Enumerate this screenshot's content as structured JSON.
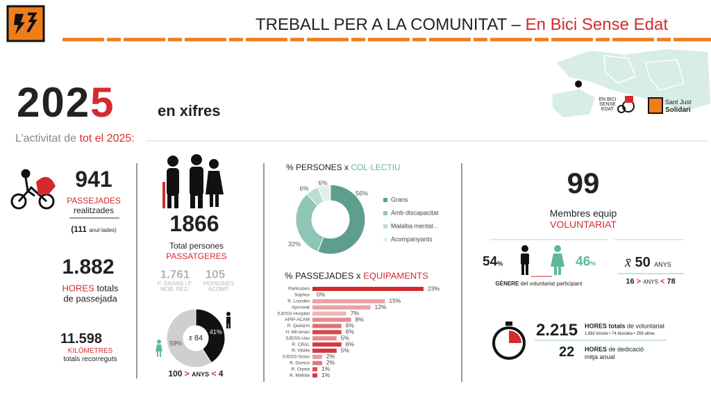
{
  "header": {
    "title": "TREBALL PER A LA COMUNITAT –",
    "title_highlight": "En Bici Sense Edat"
  },
  "hero": {
    "year_main": "202",
    "year_accent": "5",
    "tagline": "en xifres",
    "intro": "L’activitat de",
    "intro_highlight": "tot el 2025:"
  },
  "logos": {
    "ebse": "EN BICI SENSE EDAT",
    "sant_just": "Sant Just",
    "solidari": "Solidari"
  },
  "rides": {
    "total": "941",
    "label": "PASSEJADES",
    "sublabel": "realitzades",
    "cancelled": "(111",
    "cancelled_label": "anul·lades)"
  },
  "hours": {
    "total": "1.882",
    "label": "HORES",
    "label_rest": "totals",
    "sublabel": "de passejada"
  },
  "distance": {
    "total": "11.598",
    "label": "KILÒMETRES",
    "sublabel": "totals recorreguts"
  },
  "passengers": {
    "total": "1866",
    "label": "Total persones",
    "label_highlight": "PASSATGERES",
    "elderly": "1.761",
    "elderly_label": "P. GRANS I P. MOB. RED.",
    "companions": "105",
    "companions_label": "PERSONES ACOMP.",
    "age_min": "100",
    "age_gt": ">",
    "age_label": "ANYS",
    "age_lt": "<",
    "age_max": "4"
  },
  "volunteers": {
    "total": "99",
    "label": "Membres equip",
    "label_highlight": "VOLUNTARIAT",
    "men": "54",
    "men_unit": "%",
    "women": "46",
    "women_unit": "%",
    "gender_label": "GÈNERE",
    "gender_label_rest": "del voluntariat participant",
    "mean_symbol": "x̄",
    "mean_age": "50",
    "mean_unit": "ANYS",
    "age_min": "16",
    "age_gt": ">",
    "age_label": "ANYS",
    "age_lt": "<",
    "age_max": "78",
    "hours_total": "2.215",
    "hours_label": "HORES totals",
    "hours_label_rest": "de voluntariat",
    "hours_breakdown": "1.882 tricicle • 74 bicicleta • 259 altres",
    "hours_avg": "22",
    "hours_avg_label": "HORES",
    "hours_avg_label_rest": "de dedicació mitja anual"
  },
  "chart_data": [
    {
      "type": "donut",
      "values": [
        41,
        59
      ],
      "value_labels": [
        "41%",
        "59%"
      ],
      "colors": [
        "#111111",
        "#cfcfcf"
      ],
      "center_symbol": "x̄",
      "center_value": "84"
    },
    {
      "type": "donut",
      "title": "% PERSONES x",
      "title_highlight": "COL·LECTIU",
      "categories": [
        "Grans",
        "Amb discapacitat",
        "Malaltia mental...",
        "Acompanyants"
      ],
      "values": [
        56,
        32,
        6,
        6
      ],
      "value_labels": [
        "56%",
        "32%",
        "6%",
        "6%"
      ],
      "colors": [
        "#5f9e8f",
        "#8fc5b6",
        "#b9ddd2",
        "#e2f0eb"
      ]
    },
    {
      "type": "bar",
      "title": "% PASSEJADES x",
      "title_highlight": "EQUIPAMENTS",
      "categories": [
        "Particulars",
        "Sophos",
        "R. Lourdes",
        "Aproseat",
        "SJDSS-Hospital",
        "APIP-ACAM",
        "R. Quida'm",
        "H. Mil·lenari",
        "SJDSS-Uav",
        "R. CRAL",
        "R. Vitalia",
        "SJDSS-Socio",
        "R. Domus",
        "R. Orpea",
        "R. Mallola"
      ],
      "values": [
        23,
        0,
        15,
        12,
        7,
        8,
        6,
        6,
        5,
        6,
        5,
        2,
        2,
        1,
        1
      ],
      "value_labels": [
        "23%",
        "0%",
        "15%",
        "12%",
        "7%",
        "8%",
        "6%",
        "6%",
        "5%",
        "6%",
        "5%",
        "2%",
        "2%",
        "1%",
        "1%"
      ],
      "colors": [
        "#d42a2e",
        "#d42a2e",
        "#eaa2a5",
        "#eaa2a5",
        "#eeb6b8",
        "#e78a8d",
        "#e07175",
        "#d9484c",
        "#e48b8e",
        "#d6393d",
        "#d6393d",
        "#e6a0a3",
        "#e07a7e",
        "#d94c50",
        "#d6393d"
      ]
    }
  ]
}
